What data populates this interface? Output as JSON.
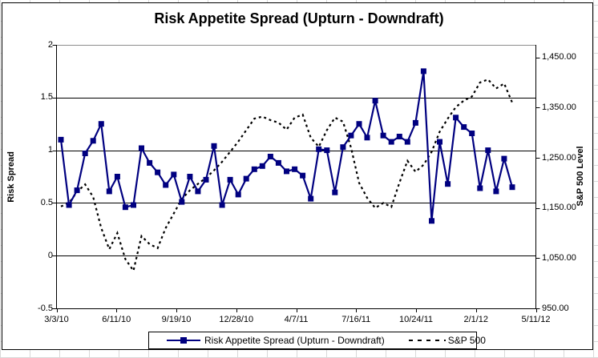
{
  "chart_data": {
    "type": "line",
    "title": "Risk Appetite Spread (Upturn - Downdraft)",
    "grid": true,
    "legend_position": "bottom",
    "x_tick_labels": [
      "3/3/10",
      "6/11/10",
      "9/19/10",
      "12/28/10",
      "4/7/11",
      "7/16/11",
      "10/24/11",
      "2/1/12",
      "5/11/12"
    ],
    "left_axis": {
      "title": "Risk Spread",
      "min": -0.5,
      "max": 2,
      "tick_labels": [
        "2",
        "1.5",
        "1",
        "0.5",
        "0",
        "-0.5"
      ],
      "tick_values": [
        2,
        1.5,
        1,
        0.5,
        0,
        -0.5
      ],
      "gridline_values": [
        1.5,
        1,
        0.5,
        0
      ]
    },
    "right_axis": {
      "title": "S&P 500 Level",
      "min": 950,
      "max": 1475,
      "tick_labels": [
        "1,450.00",
        "1,350.00",
        "1,250.00",
        "1,150.00",
        "1,050.00",
        "950.00"
      ],
      "tick_values": [
        1450,
        1350,
        1250,
        1150,
        1050,
        950
      ]
    },
    "series": [
      {
        "name": "Risk Appetite Spread (Upturn - Downdraft)",
        "axis": "left",
        "color": "#000080",
        "line_style": "solid",
        "marker": "square",
        "values": [
          1.1,
          0.48,
          0.62,
          0.97,
          1.09,
          1.25,
          0.61,
          0.75,
          0.46,
          0.48,
          1.02,
          0.88,
          0.79,
          0.67,
          0.77,
          0.51,
          0.75,
          0.61,
          0.72,
          1.04,
          0.48,
          0.72,
          0.58,
          0.73,
          0.82,
          0.85,
          0.94,
          0.88,
          0.8,
          0.82,
          0.76,
          0.54,
          1.01,
          1.0,
          0.6,
          1.03,
          1.14,
          1.25,
          1.12,
          1.47,
          1.14,
          1.08,
          1.13,
          1.08,
          1.26,
          1.75,
          0.33,
          1.08,
          0.68,
          1.31,
          1.22,
          1.16,
          0.64,
          1.0,
          0.61,
          0.92,
          0.65
        ]
      },
      {
        "name": "S&P 500",
        "axis": "right",
        "color": "#000000",
        "line_style": "dashed",
        "marker": "none",
        "values": [
          1153,
          1160,
          1182,
          1197,
          1172,
          1110,
          1068,
          1100,
          1048,
          1025,
          1094,
          1078,
          1070,
          1110,
          1139,
          1168,
          1185,
          1198,
          1210,
          1225,
          1242,
          1262,
          1282,
          1305,
          1328,
          1332,
          1325,
          1320,
          1306,
          1330,
          1336,
          1290,
          1272,
          1305,
          1330,
          1322,
          1270,
          1200,
          1170,
          1150,
          1160,
          1152,
          1200,
          1244,
          1222,
          1236,
          1262,
          1302,
          1328,
          1351,
          1364,
          1372,
          1400,
          1406,
          1388,
          1398,
          1360
        ]
      }
    ]
  },
  "colors": {
    "risk_spread_line": "#000080",
    "sp500_line": "#000000",
    "gridline": "#000000",
    "plot_top_border": "#8c8c8c",
    "background": "#ffffff"
  }
}
